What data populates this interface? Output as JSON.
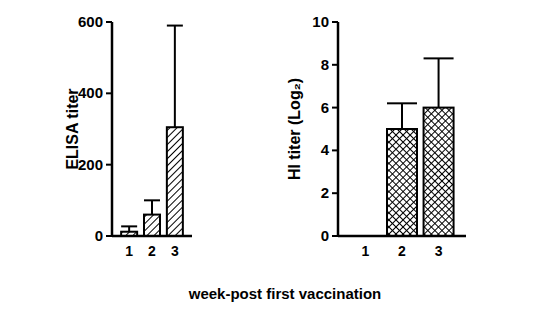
{
  "chart_data": [
    {
      "type": "bar",
      "y_label": "ELISA titer",
      "categories": [
        "1",
        "2",
        "3"
      ],
      "values": [
        12,
        60,
        305
      ],
      "errors": [
        15,
        40,
        285
      ],
      "color": "#000000",
      "ylim": [
        0,
        600
      ],
      "yticks": [
        0,
        200,
        400,
        600
      ],
      "grid": false
    },
    {
      "type": "bar",
      "y_label": "HI titer (Log₂)",
      "categories": [
        "1",
        "2",
        "3"
      ],
      "values": [
        0,
        5,
        6
      ],
      "errors": [
        0,
        1.2,
        2.3
      ],
      "color": "#000000",
      "ylim": [
        0,
        10
      ],
      "yticks": [
        0,
        2,
        4,
        6,
        8,
        10
      ],
      "grid": false
    }
  ],
  "x_label": "week-post first vaccination"
}
